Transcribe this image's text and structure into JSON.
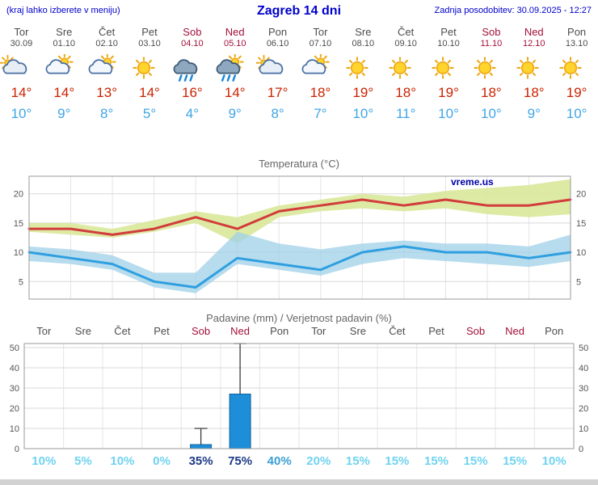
{
  "header": {
    "menu_hint": "(kraj lahko izberete v meniju)",
    "title": "Zagreb 14 dni",
    "last_update": "Zadnja posodobitev: 30.09.2025 - 12:27"
  },
  "colors": {
    "link_blue": "#0000cc",
    "day_gray": "#4d4d4d",
    "weekend_red": "#a3103a",
    "high_red": "#cc2200",
    "low_blue": "#3fa5e6",
    "temp_line_high": "#d23c3c",
    "temp_line_low": "#2f9fe0",
    "band_green": "#d9e89a",
    "band_blue": "#9fd0e8",
    "bar_fill": "#1e8ed8",
    "bar_stroke": "#11629c",
    "prob_light": "#6fd3f0",
    "prob_mid": "#3a9fd4",
    "prob_dark": "#1d3a85"
  },
  "days": [
    {
      "name": "Tor",
      "date": "30.09",
      "icon": "cloudy",
      "high": "14°",
      "low": "10°",
      "weekend": false
    },
    {
      "name": "Sre",
      "date": "01.10",
      "icon": "partly",
      "high": "14°",
      "low": "9°",
      "weekend": false
    },
    {
      "name": "Čet",
      "date": "02.10",
      "icon": "partly",
      "high": "13°",
      "low": "8°",
      "weekend": false
    },
    {
      "name": "Pet",
      "date": "03.10",
      "icon": "sunny",
      "high": "14°",
      "low": "5°",
      "weekend": false
    },
    {
      "name": "Sob",
      "date": "04.10",
      "icon": "rain",
      "high": "16°",
      "low": "4°",
      "weekend": true
    },
    {
      "name": "Ned",
      "date": "05.10",
      "icon": "rain-partly",
      "high": "14°",
      "low": "9°",
      "weekend": true
    },
    {
      "name": "Pon",
      "date": "06.10",
      "icon": "cloudy",
      "high": "17°",
      "low": "8°",
      "weekend": false
    },
    {
      "name": "Tor",
      "date": "07.10",
      "icon": "partly",
      "high": "18°",
      "low": "7°",
      "weekend": false
    },
    {
      "name": "Sre",
      "date": "08.10",
      "icon": "sunny",
      "high": "19°",
      "low": "10°",
      "weekend": false
    },
    {
      "name": "Čet",
      "date": "09.10",
      "icon": "sunny",
      "high": "18°",
      "low": "11°",
      "weekend": false
    },
    {
      "name": "Pet",
      "date": "10.10",
      "icon": "sunny",
      "high": "19°",
      "low": "10°",
      "weekend": false
    },
    {
      "name": "Sob",
      "date": "11.10",
      "icon": "sunny",
      "high": "18°",
      "low": "10°",
      "weekend": true
    },
    {
      "name": "Ned",
      "date": "12.10",
      "icon": "sunny",
      "high": "18°",
      "low": "9°",
      "weekend": true
    },
    {
      "name": "Pon",
      "date": "13.10",
      "icon": "sunny",
      "high": "19°",
      "low": "10°",
      "weekend": false
    }
  ],
  "chart_data": [
    {
      "type": "line",
      "title": "Temperatura (°C)",
      "watermark": "vreme.us",
      "x_labels": [
        "Tor",
        "Sre",
        "Čet",
        "Pet",
        "Sob",
        "Ned",
        "Pon",
        "Tor",
        "Sre",
        "Čet",
        "Pet",
        "Sob",
        "Ned",
        "Pon"
      ],
      "ylim": [
        2,
        23
      ],
      "yticks": [
        5,
        10,
        15,
        20
      ],
      "series": [
        {
          "name": "max",
          "values": [
            14,
            14,
            13,
            14,
            16,
            14,
            17,
            18,
            19,
            18,
            19,
            18,
            18,
            19
          ]
        },
        {
          "name": "max_upper",
          "values": [
            15,
            15,
            14,
            15.5,
            17,
            16,
            18,
            19,
            20,
            19.5,
            20.5,
            21,
            21.5,
            22.5
          ]
        },
        {
          "name": "max_lower",
          "values": [
            13.5,
            13,
            12.5,
            13.5,
            15,
            11.5,
            16,
            17,
            17.5,
            17,
            17.5,
            16.5,
            16,
            16.5
          ]
        },
        {
          "name": "min",
          "values": [
            10,
            9,
            8,
            5,
            4,
            9,
            8,
            7,
            10,
            11,
            10,
            10,
            9,
            10
          ]
        },
        {
          "name": "min_upper",
          "values": [
            11,
            10.5,
            9.5,
            6.5,
            6.5,
            13.5,
            11.5,
            10.5,
            11.5,
            12,
            11.5,
            11.5,
            11,
            13
          ]
        },
        {
          "name": "min_lower",
          "values": [
            8.5,
            8,
            7,
            4,
            3,
            8,
            7,
            6,
            8,
            9,
            8.5,
            8,
            7.5,
            8.5
          ]
        }
      ]
    },
    {
      "type": "bar",
      "title": "Padavine (mm) / Verjetnost padavin (%)",
      "ylim": [
        0,
        52
      ],
      "yticks": [
        0,
        10,
        20,
        30,
        40,
        50
      ],
      "amount_mm": [
        0,
        0,
        0,
        0,
        2,
        27,
        0,
        0,
        0,
        0,
        0,
        0,
        0,
        0
      ],
      "whisker_max_mm": [
        0,
        0,
        0,
        0,
        10,
        52,
        0,
        0,
        0,
        0,
        0,
        0,
        0,
        0
      ],
      "probability": [
        "10%",
        "5%",
        "10%",
        "0%",
        "35%",
        "75%",
        "40%",
        "20%",
        "15%",
        "15%",
        "15%",
        "15%",
        "15%",
        "10%"
      ],
      "probability_level": [
        "light",
        "light",
        "light",
        "light",
        "dark",
        "dark",
        "mid",
        "light",
        "light",
        "light",
        "light",
        "light",
        "light",
        "light"
      ]
    }
  ]
}
